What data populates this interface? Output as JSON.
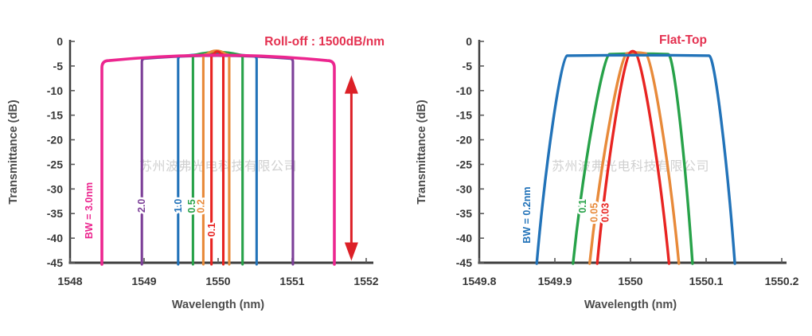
{
  "page": {
    "background": "#ffffff",
    "watermark_text": "苏州波弗光电科技有限公司"
  },
  "chart_data": [
    {
      "type": "line",
      "id": "roll-off",
      "title": "Roll-off : 1500dB/nm",
      "title_color": "#e43150",
      "xlabel": "Wavelength (nm)",
      "ylabel": "Transmittance (dB)",
      "xlim": [
        1548,
        1552
      ],
      "ylim": [
        -45,
        0
      ],
      "x_ticks": [
        1548,
        1549,
        1550,
        1551,
        1552
      ],
      "x_tick_labels": [
        "1548",
        "1549",
        "1550",
        "1551",
        "1552"
      ],
      "y_ticks": [
        0,
        -5,
        -10,
        -15,
        -20,
        -25,
        -30,
        -35,
        -40,
        -45
      ],
      "grid": false,
      "legend_position": "on-curve-rotated",
      "watermark": "苏州波弗光电科技有限公司",
      "series": [
        {
          "name": "BW = 3.0nm",
          "bandwidth_nm": 3.0,
          "color": "#ec268f",
          "shape": "steep",
          "stroke_width": 3.6,
          "corner_r": 9,
          "left_nm": 1548.43,
          "right_nm": 1551.57,
          "shoulder_db": -3.9,
          "peak_db": -2.8,
          "z": 6,
          "label": {
            "text": "BW = 3.0nm",
            "x_nm": 1548.26,
            "y_db": -34.4
          }
        },
        {
          "name": "2.0",
          "bandwidth_nm": 2.0,
          "color": "#7c3f98",
          "shape": "steep",
          "stroke_width": 3.1,
          "corner_r": 4,
          "left_nm": 1548.97,
          "right_nm": 1551.01,
          "shoulder_db": -3.5,
          "peak_db": -2.9,
          "z": 1,
          "label": {
            "text": "2.0",
            "x_nm": 1548.97,
            "y_db": -33.4
          }
        },
        {
          "name": "1.0",
          "bandwidth_nm": 1.0,
          "color": "#2273b9",
          "shape": "steep",
          "stroke_width": 3.1,
          "corner_r": 4,
          "left_nm": 1549.46,
          "right_nm": 1550.52,
          "shoulder_db": -3.0,
          "peak_db": -2.55,
          "z": 2,
          "label": {
            "text": "1.0",
            "x_nm": 1549.462,
            "y_db": -33.4
          }
        },
        {
          "name": "0.5",
          "bandwidth_nm": 0.5,
          "color": "#27a249",
          "shape": "steep",
          "stroke_width": 3.1,
          "corner_r": 4,
          "left_nm": 1549.66,
          "right_nm": 1550.33,
          "shoulder_db": -2.7,
          "peak_db": -2.15,
          "z": 3,
          "label": {
            "text": "0.5",
            "x_nm": 1549.645,
            "y_db": -33.5
          }
        },
        {
          "name": "0.2",
          "bandwidth_nm": 0.2,
          "color": "#e88a3a",
          "shape": "steep",
          "stroke_width": 3.1,
          "corner_r": 4,
          "left_nm": 1549.8,
          "right_nm": 1550.15,
          "shoulder_db": -2.6,
          "peak_db": -1.9,
          "z": 4,
          "label": {
            "text": "0.2",
            "x_nm": 1549.769,
            "y_db": -33.5
          }
        },
        {
          "name": "0.1",
          "bandwidth_nm": 0.1,
          "color": "#e82421",
          "shape": "steep",
          "stroke_width": 3.1,
          "corner_r": 3,
          "left_nm": 1549.91,
          "right_nm": 1550.07,
          "shoulder_db": -2.55,
          "peak_db": -2.05,
          "z": 5,
          "label": {
            "text": "0.1",
            "x_nm": 1549.914,
            "y_db": -38.3
          }
        }
      ],
      "annotation": {
        "type": "double-arrow",
        "x_nm": 1551.8,
        "from_db": -6.9,
        "to_db": -44.6,
        "color": "#dc2027"
      }
    },
    {
      "type": "line",
      "id": "flat-top",
      "title": "Flat-Top",
      "title_color": "#e43150",
      "xlabel": "Wavelength (nm)",
      "ylabel": "Transmittance (dB)",
      "xlim": [
        1549.8,
        1550.2
      ],
      "ylim": [
        -45,
        0
      ],
      "x_ticks": [
        1549.8,
        1549.9,
        1550,
        1550.1,
        1550.2
      ],
      "x_tick_labels": [
        "1549.8",
        "1549.9",
        "1550",
        "1550.1",
        "1550.2"
      ],
      "y_ticks": [
        0,
        -5,
        -10,
        -15,
        -20,
        -25,
        -30,
        -35,
        -40,
        -45
      ],
      "grid": false,
      "legend_position": "on-curve-rotated",
      "watermark": "苏州波弗光电科技有限公司",
      "series": [
        {
          "name": "BW = 0.2nm",
          "bandwidth_nm": 0.2,
          "color": "#2273b9",
          "shape": "smooth",
          "stroke_width": 3.4,
          "foot_left_nm": 1549.876,
          "foot_right_nm": 1550.138,
          "top_left_nm": 1549.916,
          "top_right_nm": 1550.104,
          "top_db": -2.9,
          "peak_db": -2.8,
          "z": 4,
          "label": {
            "text": "BW = 0.2nm",
            "x_nm": 1549.863,
            "y_db": -35.3
          }
        },
        {
          "name": "0.1",
          "bandwidth_nm": 0.1,
          "color": "#27a249",
          "shape": "smooth",
          "stroke_width": 3.4,
          "foot_left_nm": 1549.924,
          "foot_right_nm": 1550.082,
          "top_left_nm": 1549.972,
          "top_right_nm": 1550.05,
          "top_db": -2.6,
          "peak_db": -2.5,
          "z": 1,
          "label": {
            "text": "0.1",
            "x_nm": 1549.937,
            "y_db": -33.5
          }
        },
        {
          "name": "0.05",
          "bandwidth_nm": 0.05,
          "color": "#e88a3a",
          "shape": "smooth",
          "stroke_width": 3.4,
          "foot_left_nm": 1549.946,
          "foot_right_nm": 1550.064,
          "top_left_nm": 1549.995,
          "top_right_nm": 1550.02,
          "top_db": -2.45,
          "peak_db": -2.25,
          "z": 2,
          "label": {
            "text": "0.05",
            "x_nm": 1549.952,
            "y_db": -34.8
          }
        },
        {
          "name": "0.03",
          "bandwidth_nm": 0.03,
          "color": "#e82421",
          "shape": "smooth",
          "stroke_width": 3.4,
          "foot_left_nm": 1549.956,
          "foot_right_nm": 1550.051,
          "top_left_nm": 1550.0,
          "top_right_nm": 1550.006,
          "top_db": -2.2,
          "peak_db": -2.0,
          "z": 3,
          "label": {
            "text": "0.03",
            "x_nm": 1549.967,
            "y_db": -34.8
          }
        }
      ],
      "annotation": null
    }
  ]
}
